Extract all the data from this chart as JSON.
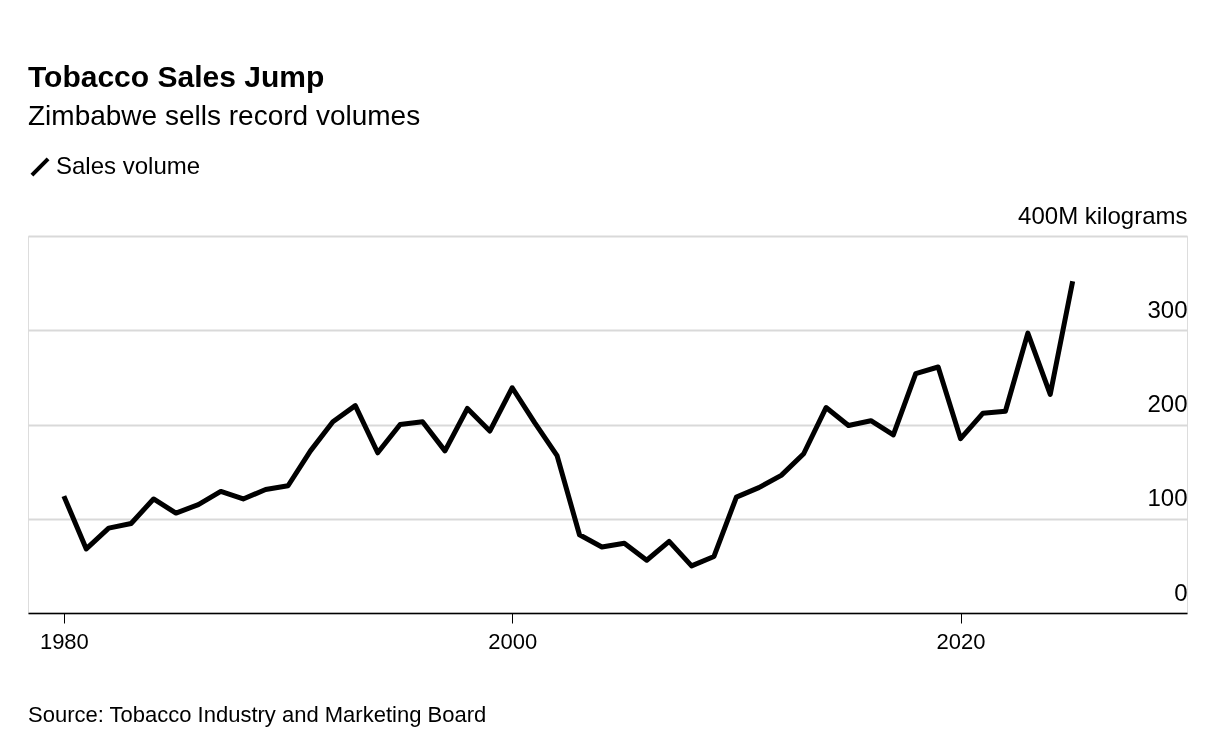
{
  "chart_data": {
    "type": "line",
    "title": "Tobacco Sales Jump",
    "subtitle": "Zimbabwe sells record volumes",
    "x": [
      1980,
      1981,
      1982,
      1983,
      1984,
      1985,
      1986,
      1987,
      1988,
      1989,
      1990,
      1991,
      1992,
      1993,
      1994,
      1995,
      1996,
      1997,
      1998,
      1999,
      2000,
      2001,
      2002,
      2003,
      2004,
      2005,
      2006,
      2007,
      2008,
      2009,
      2010,
      2011,
      2012,
      2013,
      2014,
      2015,
      2016,
      2017,
      2018,
      2019,
      2020,
      2021,
      2022,
      2023,
      2024,
      2025
    ],
    "series": [
      {
        "name": "Sales volume",
        "color": "#000000",
        "values": [
          124,
          68,
          90,
          95,
          121,
          106,
          115,
          129,
          121,
          131,
          135,
          172,
          203,
          220,
          170,
          200,
          203,
          172,
          217,
          193,
          239,
          202,
          167,
          83,
          70,
          74,
          56,
          76,
          50,
          60,
          123,
          133,
          146,
          169,
          218,
          199,
          204,
          189,
          254,
          261,
          185,
          212,
          214,
          297,
          232,
          352
        ]
      }
    ],
    "xlim": [
      1978.4,
      2030.1
    ],
    "xticks": [
      1980,
      2000,
      2020
    ],
    "ylim": [
      0,
      400
    ],
    "yticks": [
      0,
      100,
      200,
      300,
      {
        "value": 400,
        "label": "400M kilograms"
      }
    ],
    "grid": "y",
    "legend": "top left",
    "marker": "none",
    "line_style": "solid",
    "annotations": [
      "Source: Tobacco Industry and Marketing Board"
    ]
  }
}
